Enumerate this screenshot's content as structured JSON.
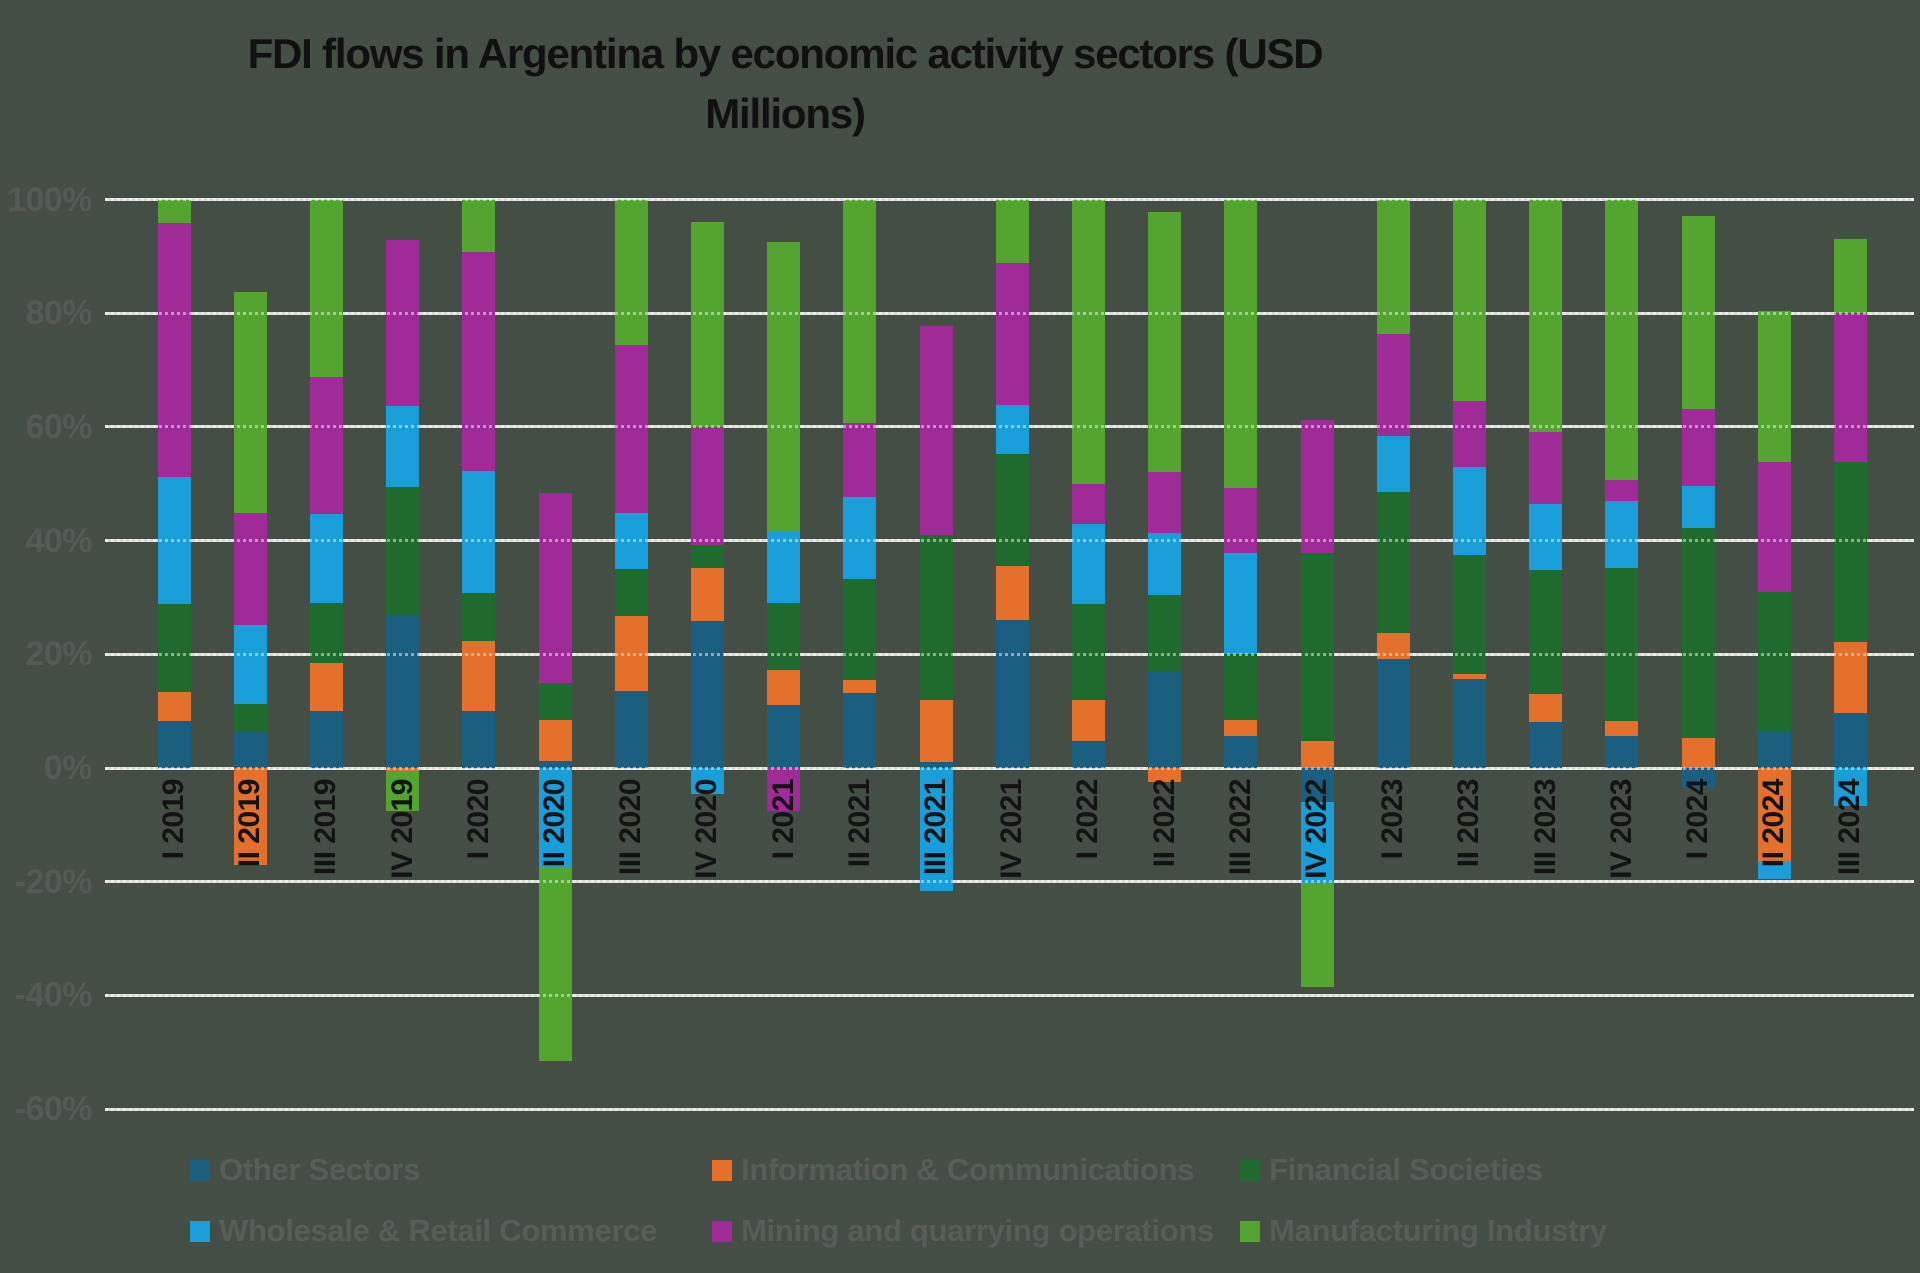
{
  "chart_data": {
    "type": "bar",
    "variant": "stacked-percent-with-negatives",
    "title": "FDI flows in Argentina by economic activity sectors (USD Millions)",
    "title_lines": [
      "FDI flows in Argentina by economic activity sectors (USD",
      "Millions)"
    ],
    "value_unit": "%",
    "ylim": [
      -60,
      100
    ],
    "ytick_labels": [
      "100%",
      "80%",
      "60%",
      "40%",
      "20%",
      "0%",
      "-20%",
      "-40%",
      "-60%"
    ],
    "ytick_values": [
      100,
      80,
      60,
      40,
      20,
      0,
      -20,
      -40,
      -60
    ],
    "grid": "horizontal",
    "legend_position": "bottom",
    "background_color": "#454E44",
    "gridline_color": "#D8D8D8",
    "categories": [
      "I 2019",
      "II 2019",
      "III 2019",
      "IV 2019",
      "I 2020",
      "II 2020",
      "III 2020",
      "IV 2020",
      "I 2021",
      "II 2021",
      "III 2021",
      "IV 2021",
      "I 2022",
      "II 2022",
      "III 2022",
      "IV 2022",
      "I 2023",
      "II 2023",
      "III 2023",
      "IV 2023",
      "I 2024",
      "II 2024",
      "III 2024"
    ],
    "series": [
      {
        "name": "Other Sectors",
        "color": "#1B5F80",
        "values": [
          8.2,
          6.3,
          10,
          27,
          10.1,
          1.3,
          13.5,
          25.8,
          11,
          13.2,
          1,
          26,
          4.8,
          16.8,
          5.7,
          -6,
          19.2,
          15.7,
          8.1,
          5.7,
          -3.6,
          6.5,
          9.7
        ]
      },
      {
        "name": "Information & Communications",
        "color": "#E4702B",
        "values": [
          5.1,
          -17,
          8.5,
          -0.5,
          12.2,
          7.2,
          13.2,
          9.4,
          6.3,
          2.3,
          10.9,
          9.6,
          7.2,
          -2.5,
          2.7,
          4.7,
          4.5,
          0.8,
          5,
          2.5,
          5.2,
          -16.3,
          12.5
        ]
      },
      {
        "name": "Financial Societies",
        "color": "#1E6B2D",
        "values": [
          15.5,
          4.9,
          10.5,
          22.4,
          8.5,
          6.4,
          8.3,
          4.1,
          11.7,
          17.7,
          29.1,
          19.7,
          16.9,
          13.7,
          11.7,
          33.2,
          24.8,
          20.9,
          21.7,
          27,
          37,
          24.4,
          31.7
        ]
      },
      {
        "name": "Wholesale & Retail Commerce",
        "color": "#189ED8",
        "values": [
          22.4,
          13.9,
          15.7,
          14.3,
          21.4,
          -17.5,
          9.9,
          -4.5,
          12.7,
          14.4,
          -21.7,
          8.6,
          14.1,
          10.9,
          17.7,
          -14.2,
          9.9,
          15.6,
          11.7,
          11.7,
          7.4,
          -3.3,
          -6.7
        ]
      },
      {
        "name": "Mining and quarrying operations",
        "color": "#A02A97",
        "values": [
          44.6,
          19.8,
          24,
          29.2,
          38.6,
          33.4,
          29.5,
          20.7,
          -7.6,
          13,
          36.8,
          24.9,
          7,
          10.6,
          11.5,
          23.4,
          17.9,
          11.6,
          12.6,
          3.8,
          13.6,
          23,
          26.2
        ]
      },
      {
        "name": "Manufacturing Industry",
        "color": "#52A52F",
        "values": [
          4.2,
          38.9,
          31.3,
          -7,
          9.2,
          -34,
          25.6,
          36,
          50.9,
          39.4,
          0,
          11.2,
          50,
          45.8,
          50.7,
          -18.4,
          23.7,
          35.4,
          40.9,
          49.3,
          33.9,
          26.4,
          13
        ]
      }
    ]
  }
}
